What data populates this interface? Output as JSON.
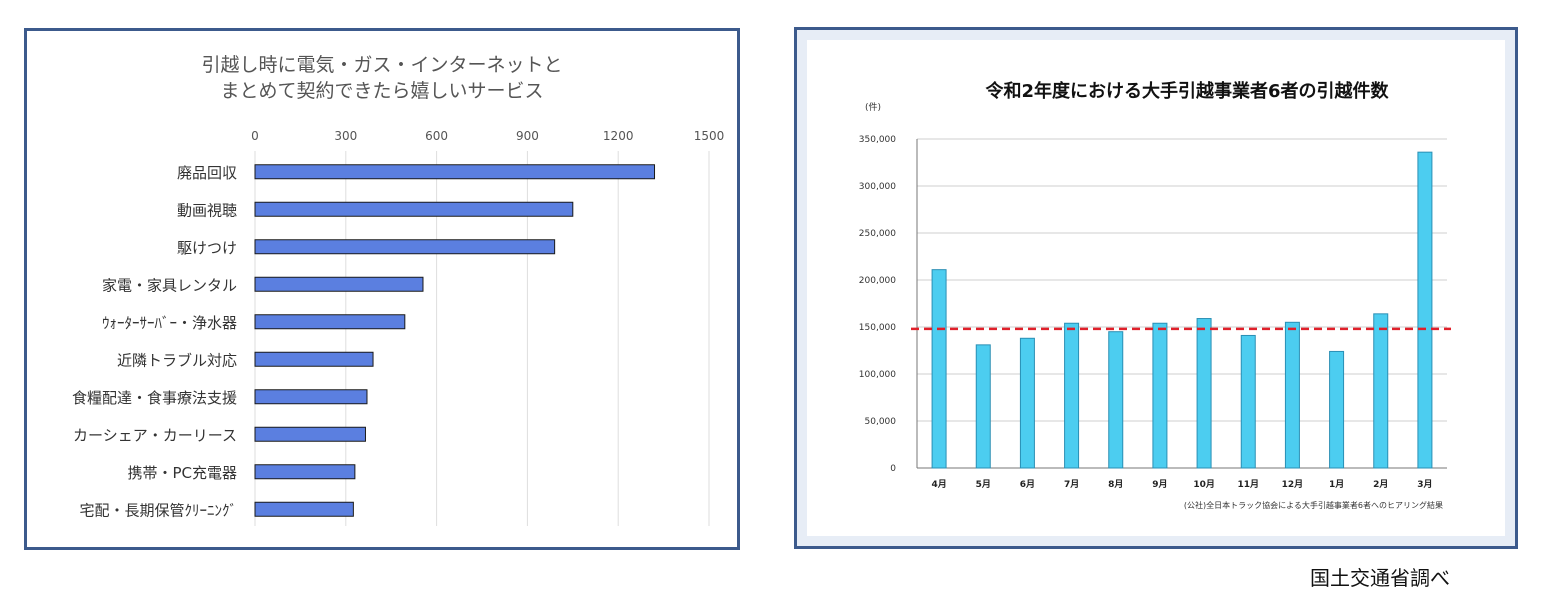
{
  "chart_data": [
    {
      "type": "bar",
      "orientation": "horizontal",
      "title_lines": [
        "引越し時に電気・ガス・インターネットと",
        "まとめて契約できたら嬉しいサービス"
      ],
      "categories": [
        "廃品回収",
        "動画視聴",
        "駆けつけ",
        "家電・家具レンタル",
        "ｳｫｰﾀｰｻｰﾊﾞｰ・浄水器",
        "近隣トラブル対応",
        "食糧配達・食事療法支援",
        "カーシェア・カーリース",
        "携帯・PC充電器",
        "宅配・長期保管ｸﾘｰﾆﾝｸﾞ"
      ],
      "values": [
        1320,
        1050,
        990,
        555,
        495,
        390,
        370,
        365,
        330,
        325
      ],
      "xlim": [
        0,
        1500
      ],
      "x_ticks": [
        "0",
        "300",
        "600",
        "900",
        "1200",
        "1500"
      ],
      "bar_color": "#5b7fe0",
      "grid": true
    },
    {
      "type": "bar",
      "title": "令和2年度における大手引越事業者6者の引越件数",
      "y_unit": "(件)",
      "categories": [
        "4月",
        "5月",
        "6月",
        "7月",
        "8月",
        "9月",
        "10月",
        "11月",
        "12月",
        "1月",
        "2月",
        "3月"
      ],
      "values": [
        211000,
        131000,
        138000,
        154000,
        145000,
        154000,
        159000,
        141000,
        155000,
        124000,
        164000,
        336000
      ],
      "ylim": [
        0,
        350000
      ],
      "y_ticks": [
        "0",
        "50,000",
        "100,000",
        "150,000",
        "200,000",
        "250,000",
        "300,000",
        "350,000"
      ],
      "reference_line": 148000,
      "reference_color": "#e0202a",
      "bar_color": "#4ccdf0",
      "grid": true,
      "source": "(公社)全日本トラック協会による大手引越事業者6者へのヒアリング結果"
    }
  ],
  "footer_note": "国土交通省調べ"
}
